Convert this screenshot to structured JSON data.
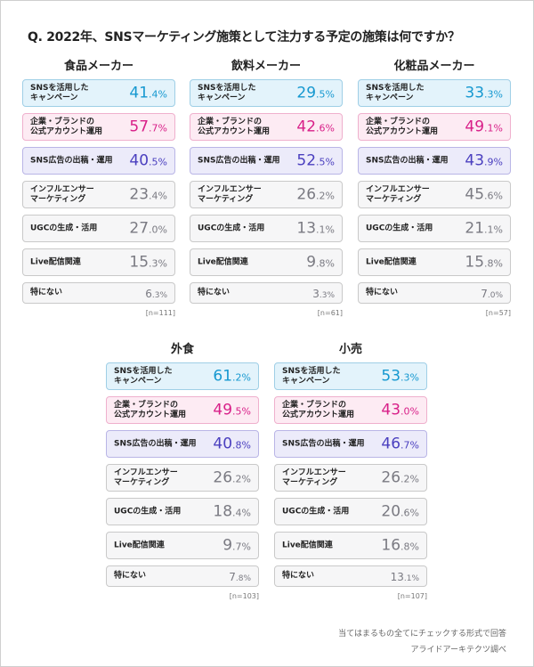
{
  "question": "Q. 2022年、SNSマーケティング施策として注力する予定の施策は何ですか？",
  "footer": {
    "note": "当てはまるもの全てにチェックする形式で回答",
    "source": "アライドアーキテクツ調べ"
  },
  "chart_data": {
    "type": "table",
    "unit": "%",
    "categories": [
      "SNSを活用した\nキャンペーン",
      "企業・ブランドの\n公式アカウント運用",
      "SNS広告の出稿・運用",
      "インフルエンサー\nマーケティング",
      "UGCの生成・活用",
      "Live配信関連",
      "特にない"
    ],
    "series": [
      {
        "name": "食品メーカー",
        "n": "[n=111]",
        "values": [
          41.4,
          57.7,
          40.5,
          23.4,
          27.0,
          15.3,
          6.3
        ],
        "highlight": [
          true,
          true,
          true,
          false,
          false,
          false,
          false
        ]
      },
      {
        "name": "飲料メーカー",
        "n": "[n=61]",
        "values": [
          29.5,
          42.6,
          52.5,
          26.2,
          13.1,
          9.8,
          3.3
        ],
        "highlight": [
          true,
          true,
          true,
          false,
          false,
          false,
          false
        ]
      },
      {
        "name": "化粧品メーカー",
        "n": "[n=57]",
        "values": [
          33.3,
          49.1,
          43.9,
          45.6,
          21.1,
          15.8,
          7.0
        ],
        "highlight": [
          true,
          true,
          true,
          false,
          false,
          false,
          false
        ]
      },
      {
        "name": "外食",
        "n": "[n=103]",
        "values": [
          61.2,
          49.5,
          40.8,
          26.2,
          18.4,
          9.7,
          7.8
        ],
        "highlight": [
          true,
          true,
          true,
          false,
          false,
          false,
          false
        ]
      },
      {
        "name": "小売",
        "n": "[n=107]",
        "values": [
          53.3,
          43.0,
          46.7,
          26.2,
          20.6,
          16.8,
          13.1
        ],
        "highlight": [
          true,
          true,
          true,
          false,
          false,
          false,
          false
        ]
      }
    ],
    "colors": {
      "row0": "#1598d0",
      "row1": "#d81f88",
      "row2": "#4a3fbf",
      "default": "#7a7a82"
    }
  }
}
